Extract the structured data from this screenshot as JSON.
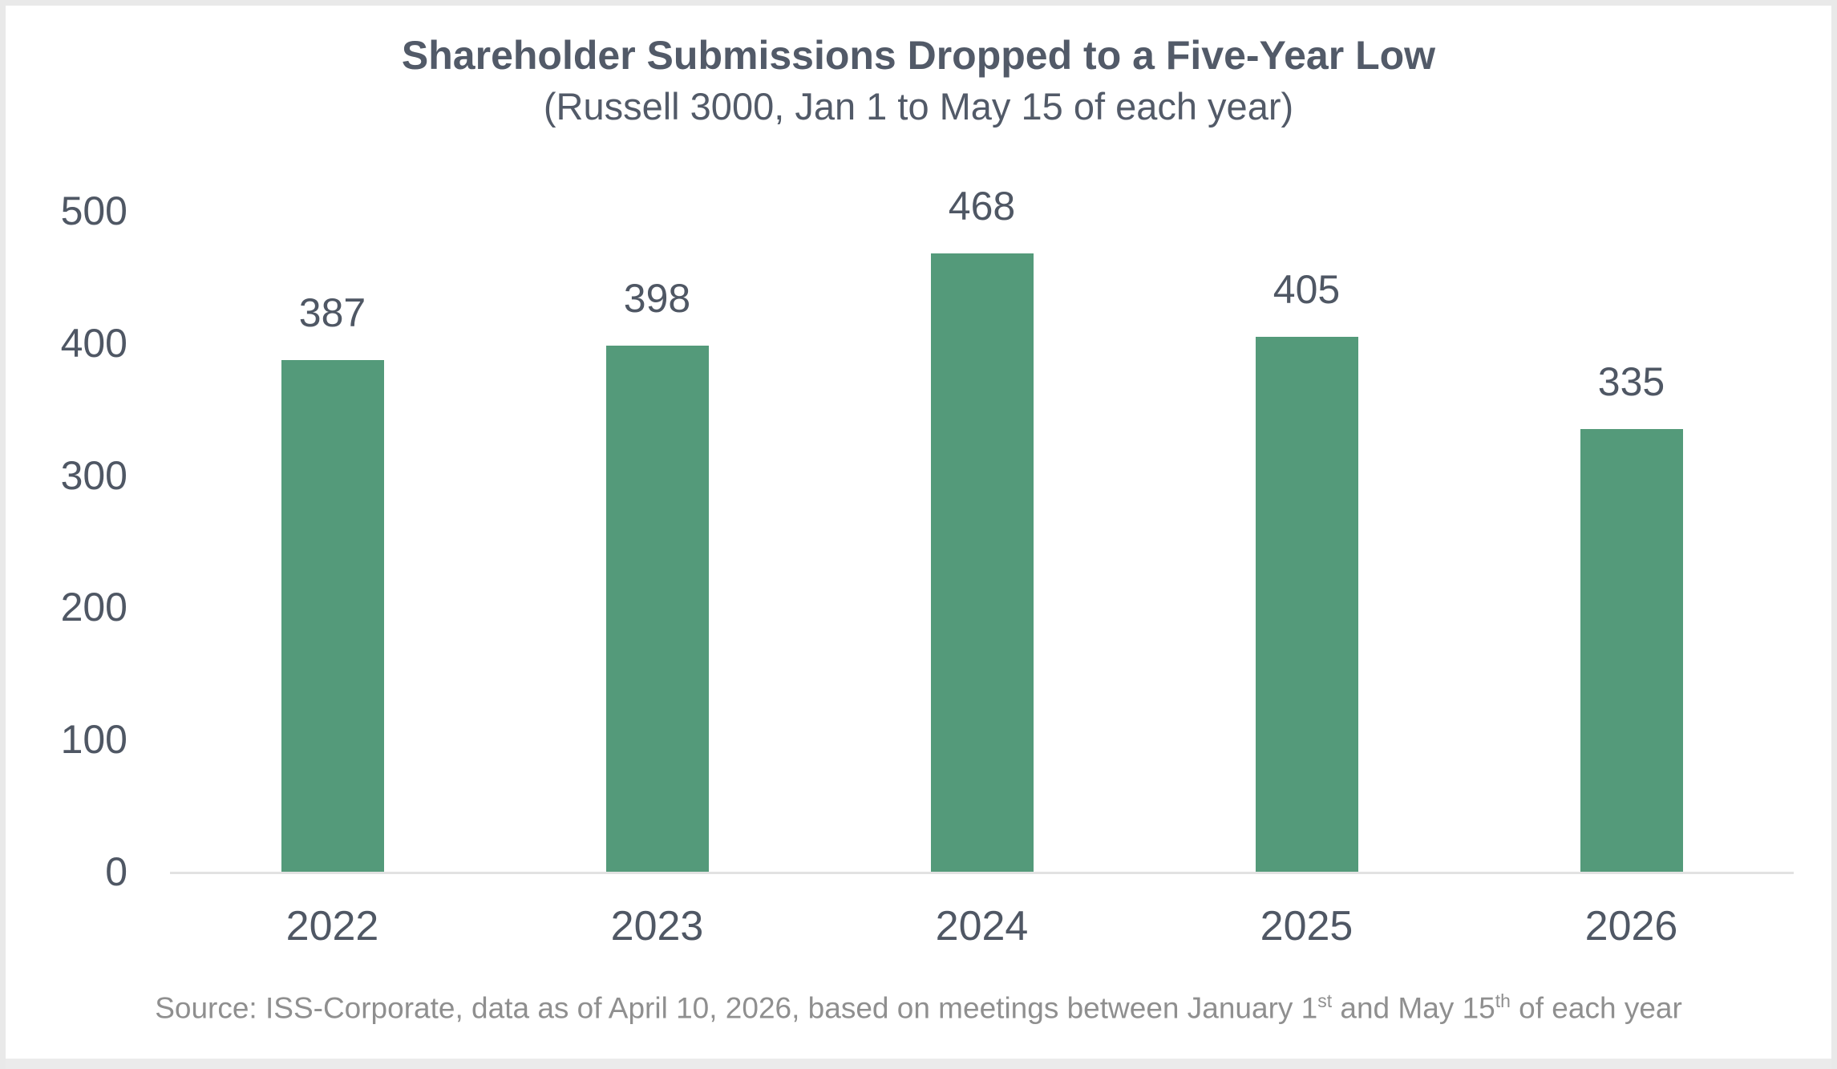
{
  "header": {
    "title": "Shareholder Submissions Dropped to a Five-Year Low",
    "subtitle": "(Russell 3000, Jan 1 to May 15 of each year)"
  },
  "chart_data": {
    "type": "bar",
    "categories": [
      "2022",
      "2023",
      "2024",
      "2025",
      "2026"
    ],
    "values": [
      387,
      398,
      468,
      405,
      335
    ],
    "title": "Shareholder Submissions Dropped to a Five-Year Low",
    "subtitle": "(Russell 3000, Jan 1 to May 15 of each year)",
    "xlabel": "",
    "ylabel": "",
    "ylim": [
      0,
      500
    ],
    "yticks": [
      0,
      100,
      200,
      300,
      400,
      500
    ],
    "grid": false,
    "legend": "none",
    "data_labels": true,
    "bar_color": "#549a7a"
  },
  "source": {
    "part1": "Source: ISS-Corporate, data as of April 10, 2026, based on meetings between January 1",
    "sup1": "st",
    "part2": " and May 15",
    "sup2": "th",
    "part3": " of each year"
  },
  "colors": {
    "bar": "#549a7a",
    "text": "#4f5764",
    "title_text": "#525a68",
    "source_text": "#8f8f8f",
    "baseline": "#e2e2e2",
    "border": "#e9e9e9"
  }
}
